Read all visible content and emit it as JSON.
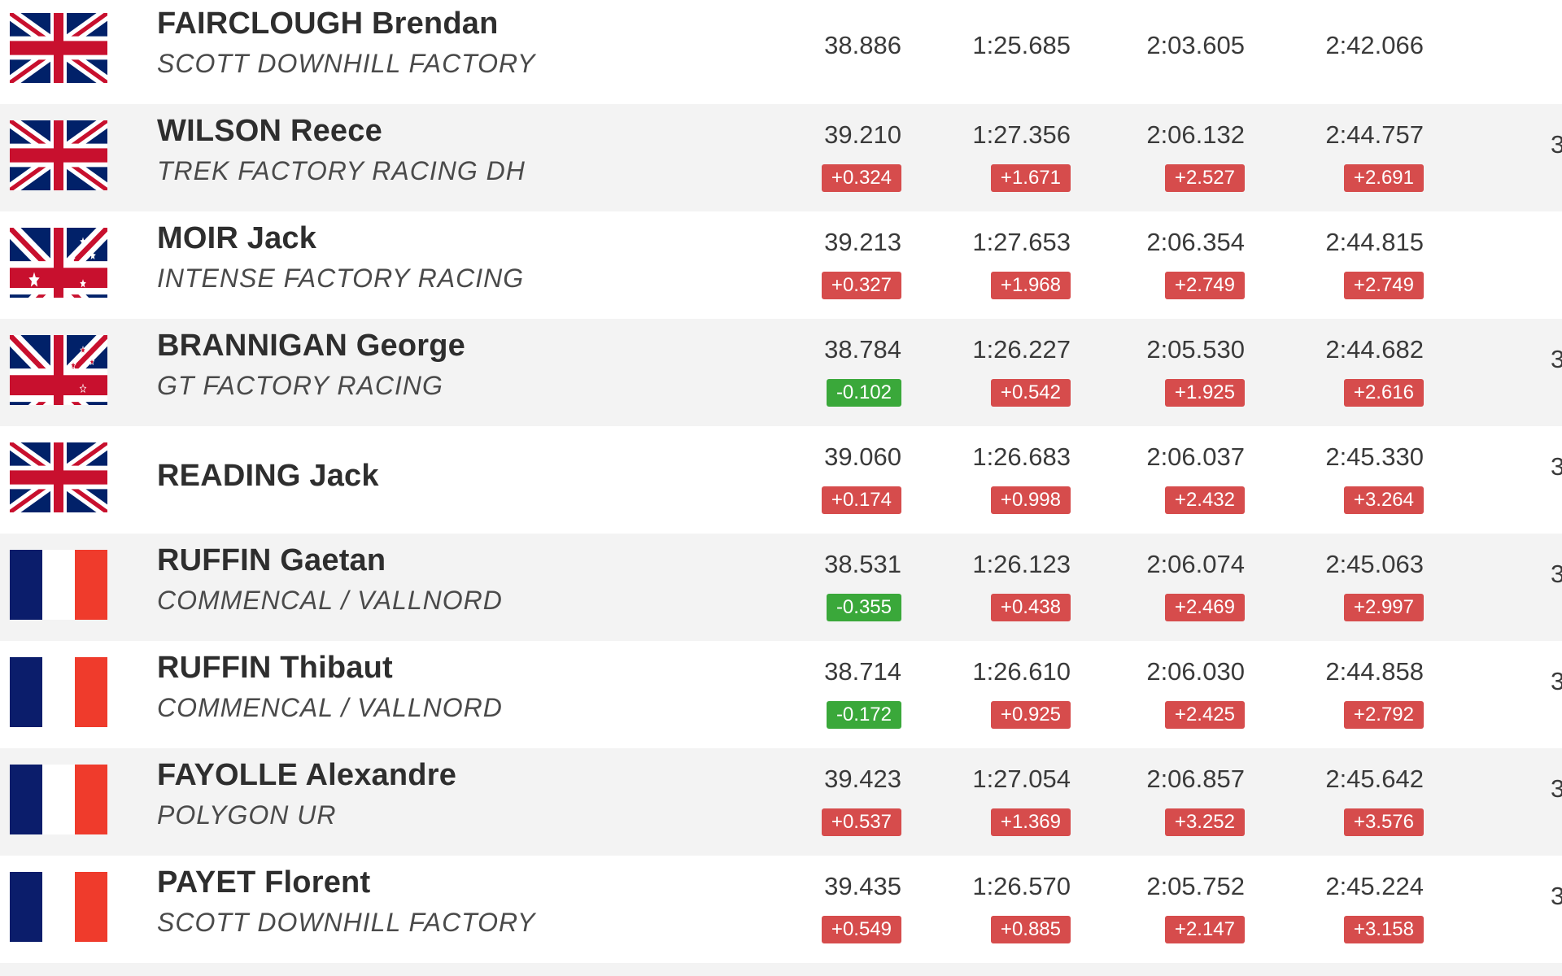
{
  "rows": [
    {
      "flag": "gbr",
      "name": "FAIRCLOUGH Brendan",
      "team": "SCOTT DOWNHILL FACTORY",
      "edge": "",
      "splits": [
        {
          "time": "38.886",
          "delta": ""
        },
        {
          "time": "1:25.685",
          "delta": ""
        },
        {
          "time": "2:03.605",
          "delta": ""
        },
        {
          "time": "2:42.066",
          "delta": ""
        }
      ]
    },
    {
      "flag": "gbr",
      "name": "WILSON Reece",
      "team": "TREK FACTORY RACING DH",
      "edge": "3",
      "splits": [
        {
          "time": "39.210",
          "delta": "+0.324"
        },
        {
          "time": "1:27.356",
          "delta": "+1.671"
        },
        {
          "time": "2:06.132",
          "delta": "+2.527"
        },
        {
          "time": "2:44.757",
          "delta": "+2.691"
        }
      ]
    },
    {
      "flag": "aus",
      "name": "MOIR Jack",
      "team": "INTENSE FACTORY RACING",
      "edge": "",
      "splits": [
        {
          "time": "39.213",
          "delta": "+0.327"
        },
        {
          "time": "1:27.653",
          "delta": "+1.968"
        },
        {
          "time": "2:06.354",
          "delta": "+2.749"
        },
        {
          "time": "2:44.815",
          "delta": "+2.749"
        }
      ]
    },
    {
      "flag": "nzl",
      "name": "BRANNIGAN George",
      "team": "GT FACTORY RACING",
      "edge": "3",
      "splits": [
        {
          "time": "38.784",
          "delta": "-0.102"
        },
        {
          "time": "1:26.227",
          "delta": "+0.542"
        },
        {
          "time": "2:05.530",
          "delta": "+1.925"
        },
        {
          "time": "2:44.682",
          "delta": "+2.616"
        }
      ]
    },
    {
      "flag": "gbr",
      "name": "READING Jack",
      "team": "",
      "edge": "3",
      "splits": [
        {
          "time": "39.060",
          "delta": "+0.174"
        },
        {
          "time": "1:26.683",
          "delta": "+0.998"
        },
        {
          "time": "2:06.037",
          "delta": "+2.432"
        },
        {
          "time": "2:45.330",
          "delta": "+3.264"
        }
      ]
    },
    {
      "flag": "fra",
      "name": "RUFFIN Gaetan",
      "team": "COMMENCAL / VALLNORD",
      "edge": "3",
      "splits": [
        {
          "time": "38.531",
          "delta": "-0.355"
        },
        {
          "time": "1:26.123",
          "delta": "+0.438"
        },
        {
          "time": "2:06.074",
          "delta": "+2.469"
        },
        {
          "time": "2:45.063",
          "delta": "+2.997"
        }
      ]
    },
    {
      "flag": "fra",
      "name": "RUFFIN Thibaut",
      "team": "COMMENCAL / VALLNORD",
      "edge": "3",
      "splits": [
        {
          "time": "38.714",
          "delta": "-0.172"
        },
        {
          "time": "1:26.610",
          "delta": "+0.925"
        },
        {
          "time": "2:06.030",
          "delta": "+2.425"
        },
        {
          "time": "2:44.858",
          "delta": "+2.792"
        }
      ]
    },
    {
      "flag": "fra",
      "name": "FAYOLLE Alexandre",
      "team": "POLYGON UR",
      "edge": "3",
      "splits": [
        {
          "time": "39.423",
          "delta": "+0.537"
        },
        {
          "time": "1:27.054",
          "delta": "+1.369"
        },
        {
          "time": "2:06.857",
          "delta": "+3.252"
        },
        {
          "time": "2:45.642",
          "delta": "+3.576"
        }
      ]
    },
    {
      "flag": "fra",
      "name": "PAYET Florent",
      "team": "SCOTT DOWNHILL FACTORY",
      "edge": "3",
      "splits": [
        {
          "time": "39.435",
          "delta": "+0.549"
        },
        {
          "time": "1:26.570",
          "delta": "+0.885"
        },
        {
          "time": "2:05.752",
          "delta": "+2.147"
        },
        {
          "time": "2:45.224",
          "delta": "+3.158"
        }
      ]
    }
  ],
  "colors": {
    "delta_slower": "#d64c4c",
    "delta_faster": "#3aa83a",
    "row_alt": "#f3f3f3"
  }
}
